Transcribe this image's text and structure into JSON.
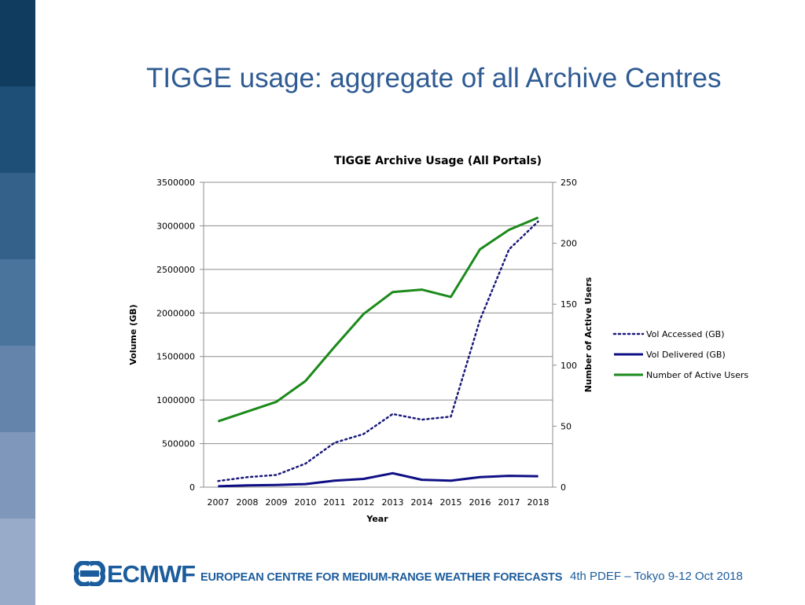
{
  "slide": {
    "title": "TIGGE usage: aggregate of all Archive Centres",
    "sidebar_colors": [
      "#103c60",
      "#1d4f77",
      "#33618a",
      "#4b749c",
      "#6584ac",
      "#7e97bb",
      "#98abc9"
    ]
  },
  "chart_data": {
    "type": "line",
    "title": "TIGGE Archive Usage (All Portals)",
    "xlabel": "Year",
    "ylabel": "Volume (GB)",
    "y2label": "Number of Active Users",
    "categories": [
      "2007",
      "2008",
      "2009",
      "2010",
      "2011",
      "2012",
      "2013",
      "2014",
      "2015",
      "2016",
      "2017",
      "2018"
    ],
    "ylim": [
      0,
      3500000
    ],
    "y2lim": [
      0,
      250
    ],
    "y_ticks": [
      "0",
      "500000",
      "1000000",
      "1500000",
      "2000000",
      "2500000",
      "3000000",
      "3500000"
    ],
    "y2_ticks": [
      "0",
      "50",
      "100",
      "150",
      "200",
      "250"
    ],
    "grid": true,
    "legend_position": "right",
    "series": [
      {
        "name": "Vol Accessed (GB)",
        "axis": "left",
        "style": "dotted",
        "color": "#1a1a7a",
        "values": [
          70000,
          115000,
          140000,
          270000,
          510000,
          610000,
          840000,
          775000,
          810000,
          1920000,
          2730000,
          3050000
        ]
      },
      {
        "name": "Vol Delivered (GB)",
        "axis": "left",
        "style": "solid",
        "color": "#0f0f85",
        "values": [
          10000,
          20000,
          25000,
          35000,
          75000,
          95000,
          160000,
          85000,
          75000,
          115000,
          130000,
          125000
        ]
      },
      {
        "name": "Number of Active Users",
        "axis": "right",
        "style": "solid",
        "color": "#1b8a1b",
        "values": [
          54,
          62,
          70,
          87,
          115,
          142,
          160,
          162,
          156,
          195,
          211,
          221
        ]
      }
    ]
  },
  "footer": {
    "logo_text": "ECMWF",
    "org_name": "EUROPEAN CENTRE FOR MEDIUM-RANGE WEATHER FORECASTS",
    "event": "4th PDEF – Tokyo 9-12 Oct 2018",
    "brand_color": "#1b5c9c"
  }
}
